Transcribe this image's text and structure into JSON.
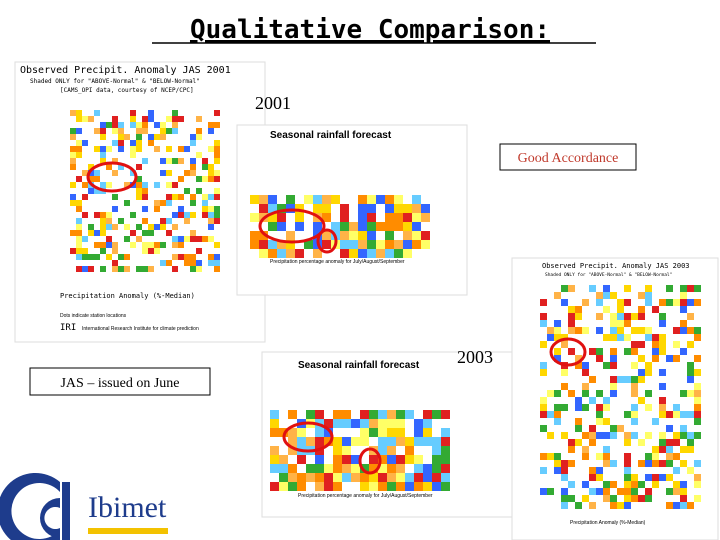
{
  "header": {
    "title": "Qualitative Comparison:"
  },
  "labels": {
    "year_2001": "2001",
    "year_2003": "2003",
    "accordance": "Good Accordance",
    "issued": "JAS – issued on June"
  },
  "maps": [
    {
      "title": "Observed Precipit. Anomaly JAS 2001",
      "subtitle": "Shaded ONLY for \"ABOVE-Normal\" & \"BELOW-Normal\"",
      "credit": "[CAMS_OPI data, courtesy of NCEP/CPC]",
      "axis": "Precipitation Anomaly (%-Median)",
      "note": "Dots indicate station locations",
      "org": "IRI",
      "org_name": "International Research Institute for climate prediction"
    },
    {
      "title": "Seasonal rainfall forecast",
      "caption": "Precipitation percentage anomaly for July/August/September"
    },
    {
      "title": "Observed Precipit. Anomaly JAS 2003",
      "subtitle": "Shaded ONLY for \"ABOVE-Normal\" & \"BELOW-Normal\"",
      "axis": "Precipitation Anomaly (%-Median)"
    },
    {
      "title": "Seasonal rainfall forecast",
      "caption": "Precipitation percentage anomaly for July/August/September"
    }
  ],
  "logo": {
    "name": "Ibimet"
  }
}
